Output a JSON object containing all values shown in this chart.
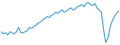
{
  "values": [
    18,
    16,
    17,
    15,
    18,
    17,
    16,
    18,
    22,
    17,
    17,
    18,
    19,
    22,
    21,
    23,
    24,
    26,
    27,
    29,
    30,
    32,
    31,
    33,
    34,
    36,
    35,
    37,
    38,
    36,
    37,
    39,
    40,
    38,
    39,
    41,
    42,
    43,
    41,
    44,
    45,
    43,
    42,
    44,
    40,
    38,
    36,
    20,
    8,
    12,
    22,
    28,
    32,
    35,
    37
  ],
  "line_color": "#4da6d8",
  "background_color": "#ffffff",
  "linewidth": 0.8
}
